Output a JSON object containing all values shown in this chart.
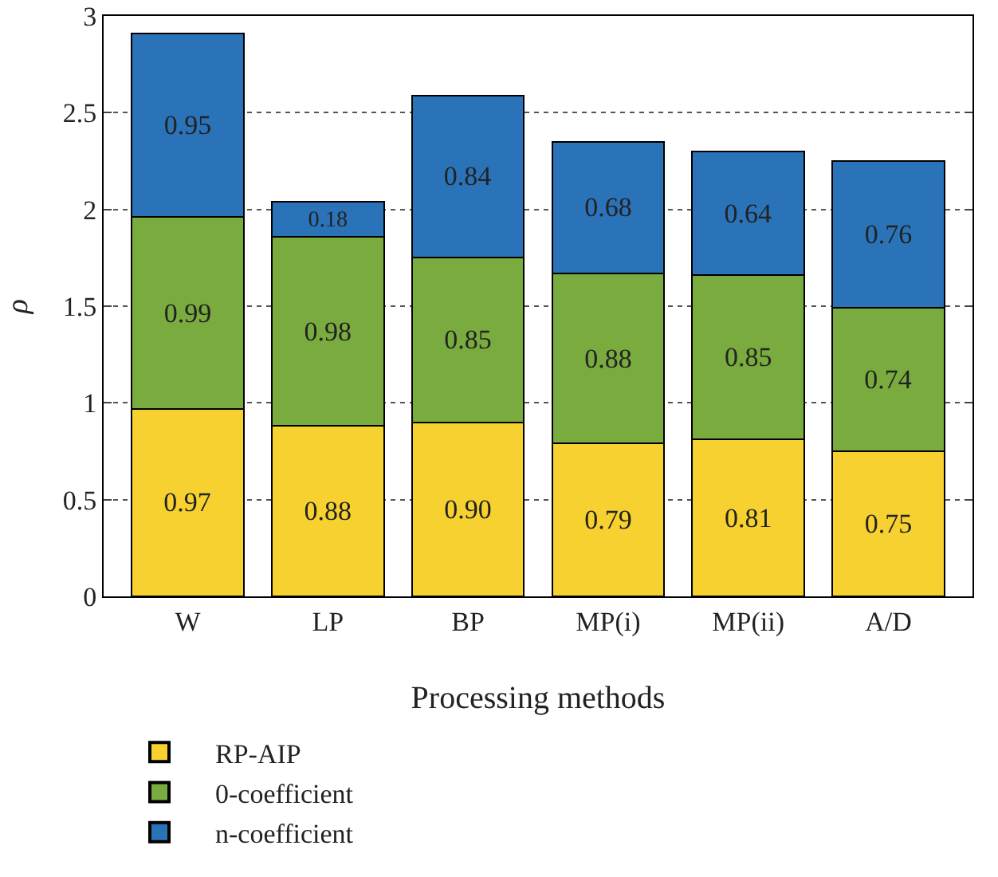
{
  "chart_data": {
    "type": "bar",
    "stacked": true,
    "xlabel": "Processing methods",
    "ylabel": "ρ",
    "categories": [
      "W",
      "LP",
      "BP",
      "MP(i)",
      "MP(ii)",
      "A/D"
    ],
    "series": [
      {
        "name": "RP-AIP",
        "color": "#f6d12f",
        "values": [
          0.97,
          0.88,
          0.9,
          0.79,
          0.81,
          0.75
        ],
        "value_labels": [
          "0.97",
          "0.88",
          "0.90",
          "0.79",
          "0.81",
          "0.75"
        ]
      },
      {
        "name": "0-coefficient",
        "color": "#7aab3e",
        "values": [
          0.99,
          0.98,
          0.85,
          0.88,
          0.85,
          0.74
        ],
        "value_labels": [
          "0.99",
          "0.98",
          "0.85",
          "0.88",
          "0.85",
          "0.74"
        ]
      },
      {
        "name": "n-coefficient",
        "color": "#2a73b8",
        "values": [
          0.95,
          0.18,
          0.84,
          0.68,
          0.64,
          0.76
        ],
        "value_labels": [
          "0.95",
          "0.18",
          "0.84",
          "0.68",
          "0.64",
          "0.76"
        ]
      }
    ],
    "ylim": [
      0,
      3
    ],
    "yticks": [
      0,
      0.5,
      1,
      1.5,
      2,
      2.5,
      3
    ],
    "grid": "y",
    "legend": "bottom left"
  }
}
